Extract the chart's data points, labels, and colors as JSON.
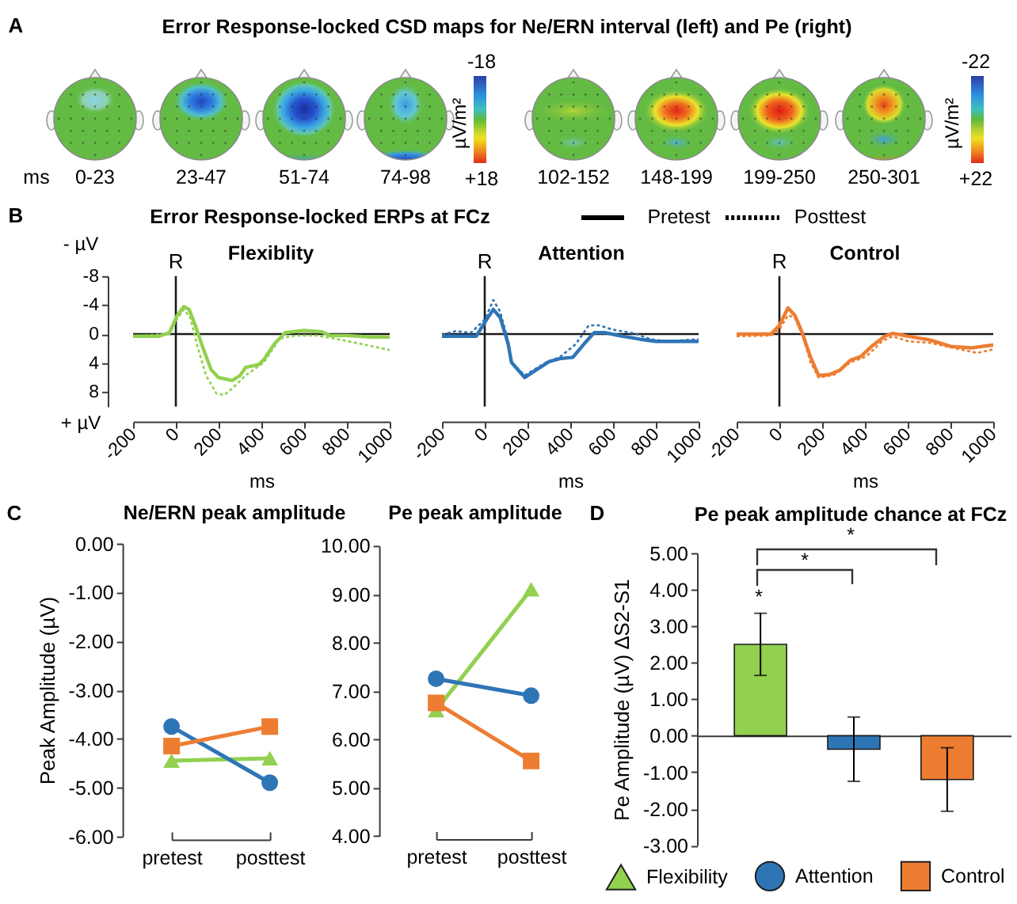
{
  "chart_data": [
    {
      "type": "other",
      "title": "Error Response-locked CSD maps for Ne/ERN interval (left) and Pe (right)",
      "annotations": [
        "A",
        "ms",
        "0-23",
        "23-47",
        "51-74",
        "74-98",
        "-18",
        "+18"
      ],
      "clabel": "µV/m²"
    },
    {
      "type": "other",
      "annotations": [
        "102-152",
        "148-199",
        "199-250",
        "250-301",
        "-22",
        "+22"
      ],
      "clabel": "µV/m²"
    },
    {
      "type": "line",
      "title": "Flexiblity",
      "xlabel": "ms",
      "annotations": [
        "B",
        "Error Response-locked ERPs at FCz",
        "- µV",
        "+ µV"
      ],
      "xlim": [
        -200,
        1000
      ],
      "xticks": [
        -200,
        0,
        200,
        400,
        600,
        800,
        1000
      ],
      "ylim": [
        10,
        -8
      ],
      "yticks": [
        -8,
        -4,
        0,
        4,
        8
      ],
      "ref_lines": [
        {
          "axis": "y",
          "value": 0
        },
        {
          "axis": "x",
          "value": 0,
          "label": "R"
        }
      ],
      "series": [
        {
          "color": "#92d050",
          "line_style": "solid",
          "x": [
            -200,
            -80,
            -30,
            5,
            37,
            62,
            91,
            128,
            165,
            200,
            264,
            301,
            326,
            388,
            412,
            462,
            511,
            598,
            684,
            721,
            807,
            906,
            1000
          ],
          "values": [
            0.3,
            0.3,
            -0.2,
            -2.5,
            -3.8,
            -3.4,
            -1.2,
            2.0,
            4.9,
            6.0,
            6.4,
            5.7,
            4.6,
            4.2,
            3.5,
            1.3,
            -0.2,
            -0.5,
            -0.3,
            0.2,
            0.2,
            0.4,
            0.4
          ]
        },
        {
          "color": "#92d050",
          "line_style": "dotted",
          "x": [
            -200,
            -30,
            5,
            37,
            67,
            104,
            141,
            190,
            227,
            264,
            326,
            412,
            486,
            560,
            659,
            758,
            857,
            1000
          ],
          "values": [
            0.3,
            0.0,
            -2.0,
            -3.4,
            -2.3,
            2.0,
            5.7,
            8.2,
            8.4,
            7.5,
            5.7,
            3.9,
            0.6,
            0.2,
            0.2,
            0.7,
            1.3,
            2.2
          ]
        }
      ]
    },
    {
      "type": "line",
      "title": "Attention",
      "xlabel": "ms",
      "annotations": [
        "Pretest",
        "Posttest"
      ],
      "xlim": [
        -200,
        1000
      ],
      "xticks": [
        -200,
        0,
        200,
        400,
        600,
        800,
        1000
      ],
      "ylim": [
        10,
        -8
      ],
      "tick_labels": "x",
      "ref_lines": [
        {
          "axis": "y",
          "value": 0
        },
        {
          "axis": "x",
          "value": 0,
          "label": "R"
        }
      ],
      "series": [
        {
          "color": "#2e75b6",
          "line_style": "solid",
          "x": [
            -200,
            -40,
            0,
            40,
            72,
            109,
            125,
            187,
            237,
            275,
            300,
            350,
            412,
            475,
            512,
            562,
            625,
            725,
            800,
            1000
          ],
          "values": [
            0.3,
            0.3,
            -1.6,
            -3.4,
            -2.3,
            1.3,
            3.9,
            6.0,
            5.0,
            4.3,
            3.8,
            3.4,
            3.2,
            1.0,
            -0.2,
            -0.2,
            0.2,
            0.7,
            1.0,
            1.0
          ]
        },
        {
          "color": "#2e75b6",
          "line_style": "dotted",
          "x": [
            -200,
            -138,
            -64,
            0,
            40,
            72,
            109,
            125,
            187,
            287,
            350,
            425,
            487,
            537,
            600,
            700,
            775,
            850,
            1000
          ],
          "values": [
            0.1,
            -0.4,
            -0.2,
            -2.0,
            -4.7,
            -3.1,
            0.9,
            3.9,
            5.7,
            3.9,
            3.2,
            1.4,
            -1.2,
            -1.2,
            -0.6,
            -0.1,
            0.7,
            1.0,
            0.7
          ]
        }
      ]
    },
    {
      "type": "line",
      "title": "Control",
      "xlabel": "ms",
      "xlim": [
        -200,
        1000
      ],
      "xticks": [
        -200,
        0,
        200,
        400,
        600,
        800,
        1000
      ],
      "ylim": [
        10,
        -8
      ],
      "tick_labels": "x",
      "ref_lines": [
        {
          "axis": "y",
          "value": 0
        },
        {
          "axis": "x",
          "value": 0,
          "label": "R"
        }
      ],
      "series": [
        {
          "color": "#ed7d31",
          "line_style": "solid",
          "x": [
            -200,
            -40,
            0,
            40,
            72,
            104,
            146,
            183,
            233,
            282,
            332,
            381,
            431,
            493,
            530,
            604,
            703,
            802,
            901,
            1000
          ],
          "values": [
            0.0,
            0.0,
            -1.2,
            -3.6,
            -2.6,
            -0.4,
            3.2,
            5.7,
            5.6,
            5.0,
            3.6,
            3.1,
            1.7,
            0.3,
            -0.1,
            0.3,
            0.8,
            1.7,
            1.9,
            1.5
          ]
        },
        {
          "color": "#ed7d31",
          "line_style": "dotted",
          "x": [
            -200,
            -40,
            0,
            40,
            72,
            109,
            146,
            183,
            257,
            332,
            406,
            480,
            530,
            604,
            703,
            827,
            926,
            1000
          ],
          "values": [
            0.3,
            0.2,
            -0.6,
            -2.6,
            -2.3,
            0.3,
            3.9,
            6.0,
            5.6,
            3.9,
            3.1,
            1.0,
            0.3,
            1.0,
            1.2,
            2.0,
            2.6,
            2.1
          ]
        }
      ]
    },
    {
      "type": "line",
      "title": "Ne/ERN peak amplitude",
      "ylabel": "Peak Amplitude (µV)",
      "annotations": [
        "C"
      ],
      "categories": [
        "pretest",
        "posttest"
      ],
      "ylim": [
        -6,
        0
      ],
      "yticks": [
        {
          "value": -6,
          "label": "-6.00"
        },
        {
          "value": -5,
          "label": "-5.00"
        },
        {
          "value": -4,
          "label": "-4.00"
        },
        {
          "value": -3,
          "label": "-3.00"
        },
        {
          "value": -2,
          "label": "-2.00"
        },
        {
          "value": -1,
          "label": "-1.00"
        },
        {
          "value": 0,
          "label": "0.00"
        }
      ],
      "line_style": "solid",
      "series": [
        {
          "color": "#92d050",
          "marker": "triangle",
          "values": [
            -4.45,
            -4.4
          ]
        },
        {
          "color": "#2e75b6",
          "marker": "circle",
          "values": [
            -3.75,
            -4.9
          ]
        },
        {
          "color": "#ed7d31",
          "marker": "square",
          "values": [
            -4.15,
            -3.75
          ]
        }
      ]
    },
    {
      "type": "line",
      "title": "Pe peak amplitude",
      "categories": [
        "pretest",
        "posttest"
      ],
      "ylim": [
        4,
        10
      ],
      "yticks": [
        {
          "value": 4,
          "label": "4.00"
        },
        {
          "value": 5,
          "label": "5.00"
        },
        {
          "value": 6,
          "label": "6.00"
        },
        {
          "value": 7,
          "label": "7.00"
        },
        {
          "value": 8,
          "label": "8.00"
        },
        {
          "value": 9,
          "label": "9.00"
        },
        {
          "value": 10,
          "label": "10.00"
        }
      ],
      "line_style": "solid",
      "series": [
        {
          "color": "#92d050",
          "marker": "triangle",
          "values": [
            6.6,
            9.1
          ]
        },
        {
          "color": "#2e75b6",
          "marker": "circle",
          "values": [
            7.25,
            6.9
          ]
        },
        {
          "color": "#ed7d31",
          "marker": "square",
          "values": [
            6.75,
            5.55
          ]
        }
      ]
    },
    {
      "type": "bar",
      "title": "Pe peak amplitude chance at FCz",
      "ylabel": "Pe Amplitude (µV) ∆S2-S1",
      "annotations": [
        "D",
        "*",
        "*",
        "*"
      ],
      "categories": [
        null
      ],
      "ylim": [
        -3,
        5
      ],
      "yticks": [
        {
          "value": -3,
          "label": "-3.00"
        },
        {
          "value": -2,
          "label": "-2.00"
        },
        {
          "value": -1,
          "label": "-1.00"
        },
        {
          "value": 0,
          "label": "0.00"
        },
        {
          "value": 1,
          "label": "1.00"
        },
        {
          "value": 2,
          "label": "2.00"
        },
        {
          "value": 3,
          "label": "3.00"
        },
        {
          "value": 4,
          "label": "4.00"
        },
        {
          "value": 5,
          "label": "5.00"
        }
      ],
      "legend": "bottom",
      "series": [
        {
          "name": "Flexibility",
          "color": "#92d050",
          "marker": "triangle",
          "values": [
            2.5
          ],
          "errors": [
            0.85
          ]
        },
        {
          "name": "Attention",
          "color": "#2e75b6",
          "marker": "circle",
          "values": [
            -0.37
          ],
          "errors": [
            0.88
          ]
        },
        {
          "name": "Control",
          "color": "#ed7d31",
          "marker": "square",
          "values": [
            -1.2
          ],
          "errors": [
            0.87
          ]
        }
      ]
    }
  ]
}
